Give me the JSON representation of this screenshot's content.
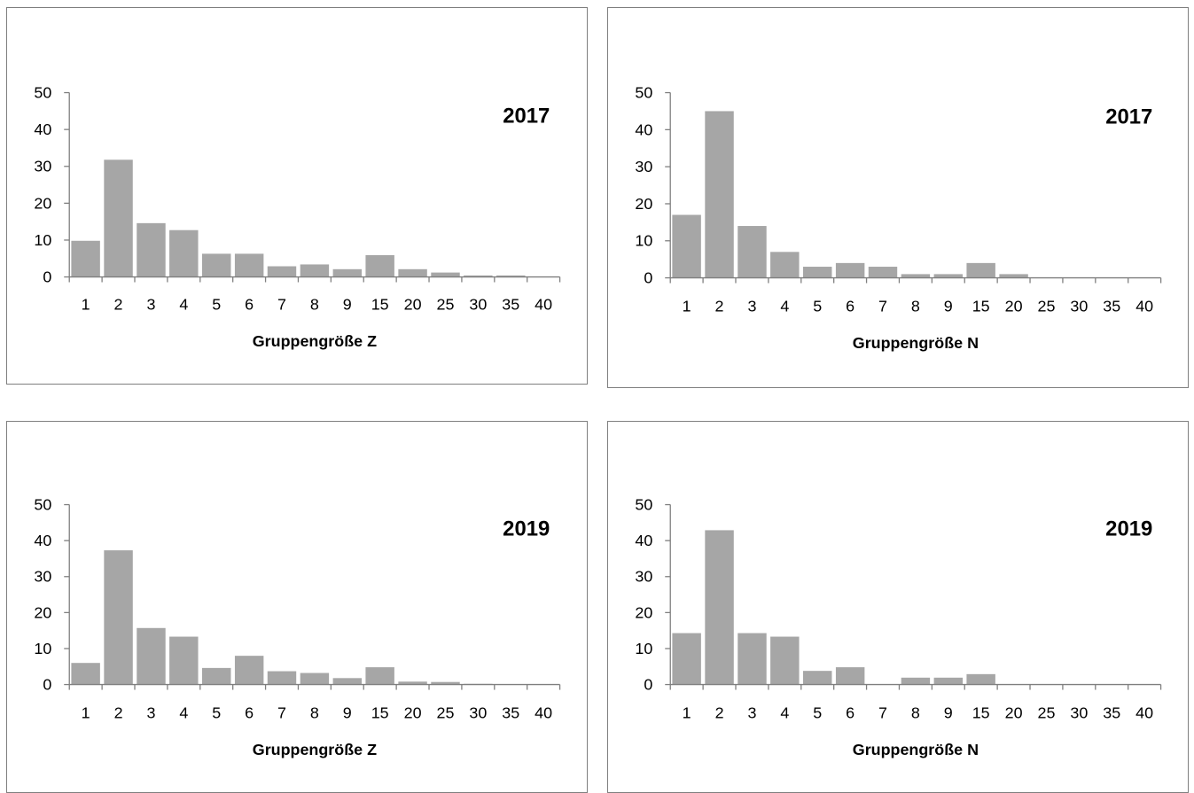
{
  "chart_data": [
    {
      "type": "bar",
      "annotation": "2017",
      "xlabel": "Gruppengröße Z",
      "ylabel": "",
      "ylim": [
        0,
        50
      ],
      "yticks": [
        0,
        10,
        20,
        30,
        40,
        50
      ],
      "categories": [
        "1",
        "2",
        "3",
        "4",
        "5",
        "6",
        "7",
        "8",
        "9",
        "15",
        "20",
        "25",
        "30",
        "35",
        "40"
      ],
      "values": [
        9.8,
        31.8,
        14.6,
        12.7,
        6.3,
        6.3,
        2.9,
        3.4,
        2.1,
        5.9,
        2.1,
        1.2,
        0.4,
        0.4,
        0
      ],
      "bar_color": "#a6a6a6",
      "grid": false
    },
    {
      "type": "bar",
      "annotation": "2017",
      "xlabel": "Gruppengröße N",
      "ylabel": "",
      "ylim": [
        0,
        50
      ],
      "yticks": [
        0,
        10,
        20,
        30,
        40,
        50
      ],
      "categories": [
        "1",
        "2",
        "3",
        "4",
        "5",
        "6",
        "7",
        "8",
        "9",
        "15",
        "20",
        "25",
        "30",
        "35",
        "40"
      ],
      "values": [
        17,
        45,
        14,
        7,
        3,
        4,
        3,
        1,
        1,
        4,
        1,
        0,
        0,
        0,
        0
      ],
      "bar_color": "#a6a6a6",
      "grid": false
    },
    {
      "type": "bar",
      "annotation": "2019",
      "xlabel": "Gruppengröße Z",
      "ylabel": "",
      "ylim": [
        0,
        50
      ],
      "yticks": [
        0,
        10,
        20,
        30,
        40,
        50
      ],
      "categories": [
        "1",
        "2",
        "3",
        "4",
        "5",
        "6",
        "7",
        "8",
        "9",
        "15",
        "20",
        "25",
        "30",
        "35",
        "40"
      ],
      "values": [
        6,
        37.3,
        15.7,
        13.3,
        4.6,
        8,
        3.7,
        3.2,
        1.8,
        4.8,
        0.8,
        0.7,
        0.2,
        0.1,
        0
      ],
      "bar_color": "#a6a6a6",
      "grid": false
    },
    {
      "type": "bar",
      "annotation": "2019",
      "xlabel": "Gruppengröße N",
      "ylabel": "",
      "ylim": [
        0,
        50
      ],
      "yticks": [
        0,
        10,
        20,
        30,
        40,
        50
      ],
      "categories": [
        "1",
        "2",
        "3",
        "4",
        "5",
        "6",
        "7",
        "8",
        "9",
        "15",
        "20",
        "25",
        "30",
        "35",
        "40"
      ],
      "values": [
        14.3,
        42.9,
        14.3,
        13.3,
        3.8,
        4.8,
        0,
        1.9,
        1.9,
        2.9,
        0,
        0,
        0,
        0,
        0
      ],
      "bar_color": "#a6a6a6",
      "grid": false
    }
  ]
}
